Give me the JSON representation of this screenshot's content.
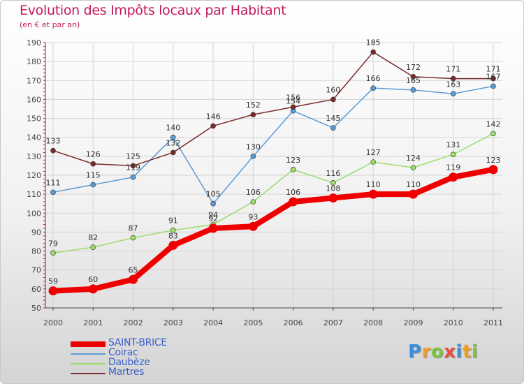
{
  "header": {
    "title": "Evolution des Impôts locaux par Habitant",
    "subtitle": "(en € et par an)"
  },
  "brand": {
    "letters": [
      "P",
      "r",
      "o",
      "x",
      "i",
      "t",
      "i"
    ],
    "colors": [
      "#3b8ede",
      "#f0a020",
      "#7cc242",
      "#e84d3d",
      "#3b8ede",
      "#f0a020",
      "#7cc242"
    ]
  },
  "chart_data": {
    "type": "line",
    "title": "Evolution des Impôts locaux par Habitant",
    "subtitle": "(en € et par an)",
    "xlabel": "",
    "ylabel": "",
    "x": [
      "2000",
      "2001",
      "2002",
      "2003",
      "2004",
      "2005",
      "2006",
      "2007",
      "2008",
      "2009",
      "2010",
      "2011"
    ],
    "yticks": [
      "50",
      "60",
      "70",
      "80",
      "90",
      "100",
      "110",
      "120",
      "130",
      "140",
      "150",
      "160",
      "170",
      "180",
      "190"
    ],
    "ylim": [
      50,
      190
    ],
    "grid": true,
    "legend_position": "bottom-left",
    "series": [
      {
        "name": "SAINT-BRICE",
        "color": "#ee0000",
        "emphasis": true,
        "values": [
          59,
          60,
          65,
          83,
          92,
          93,
          106,
          108,
          110,
          110,
          119,
          123
        ],
        "labels": [
          "59",
          "60",
          "65",
          "83",
          "92",
          "93",
          "106",
          "108",
          "110",
          "110",
          "119",
          "123"
        ]
      },
      {
        "name": "Coirac",
        "color": "#5b9bd5",
        "emphasis": false,
        "values": [
          111,
          115,
          119,
          140,
          105,
          130,
          154,
          145,
          166,
          165,
          163,
          167
        ],
        "labels": [
          "111",
          "115",
          "119",
          "140",
          "105",
          "130",
          "154",
          "145",
          "166",
          "165",
          "163",
          "167"
        ]
      },
      {
        "name": "Daubèze",
        "color": "#9bdc6a",
        "emphasis": false,
        "values": [
          79,
          82,
          87,
          91,
          94,
          106,
          123,
          116,
          127,
          124,
          131,
          142
        ],
        "labels": [
          "79",
          "82",
          "87",
          "91",
          "94",
          "106",
          "123",
          "116",
          "127",
          "124",
          "131",
          "142"
        ]
      },
      {
        "name": "Martres",
        "color": "#7a2b2b",
        "emphasis": false,
        "values": [
          133,
          126,
          125,
          132,
          146,
          152,
          156,
          160,
          185,
          172,
          171,
          171
        ],
        "labels": [
          "133",
          "126",
          "125",
          "132",
          "146",
          "152",
          "156",
          "160",
          "185",
          "172",
          "171",
          "171"
        ]
      }
    ]
  }
}
